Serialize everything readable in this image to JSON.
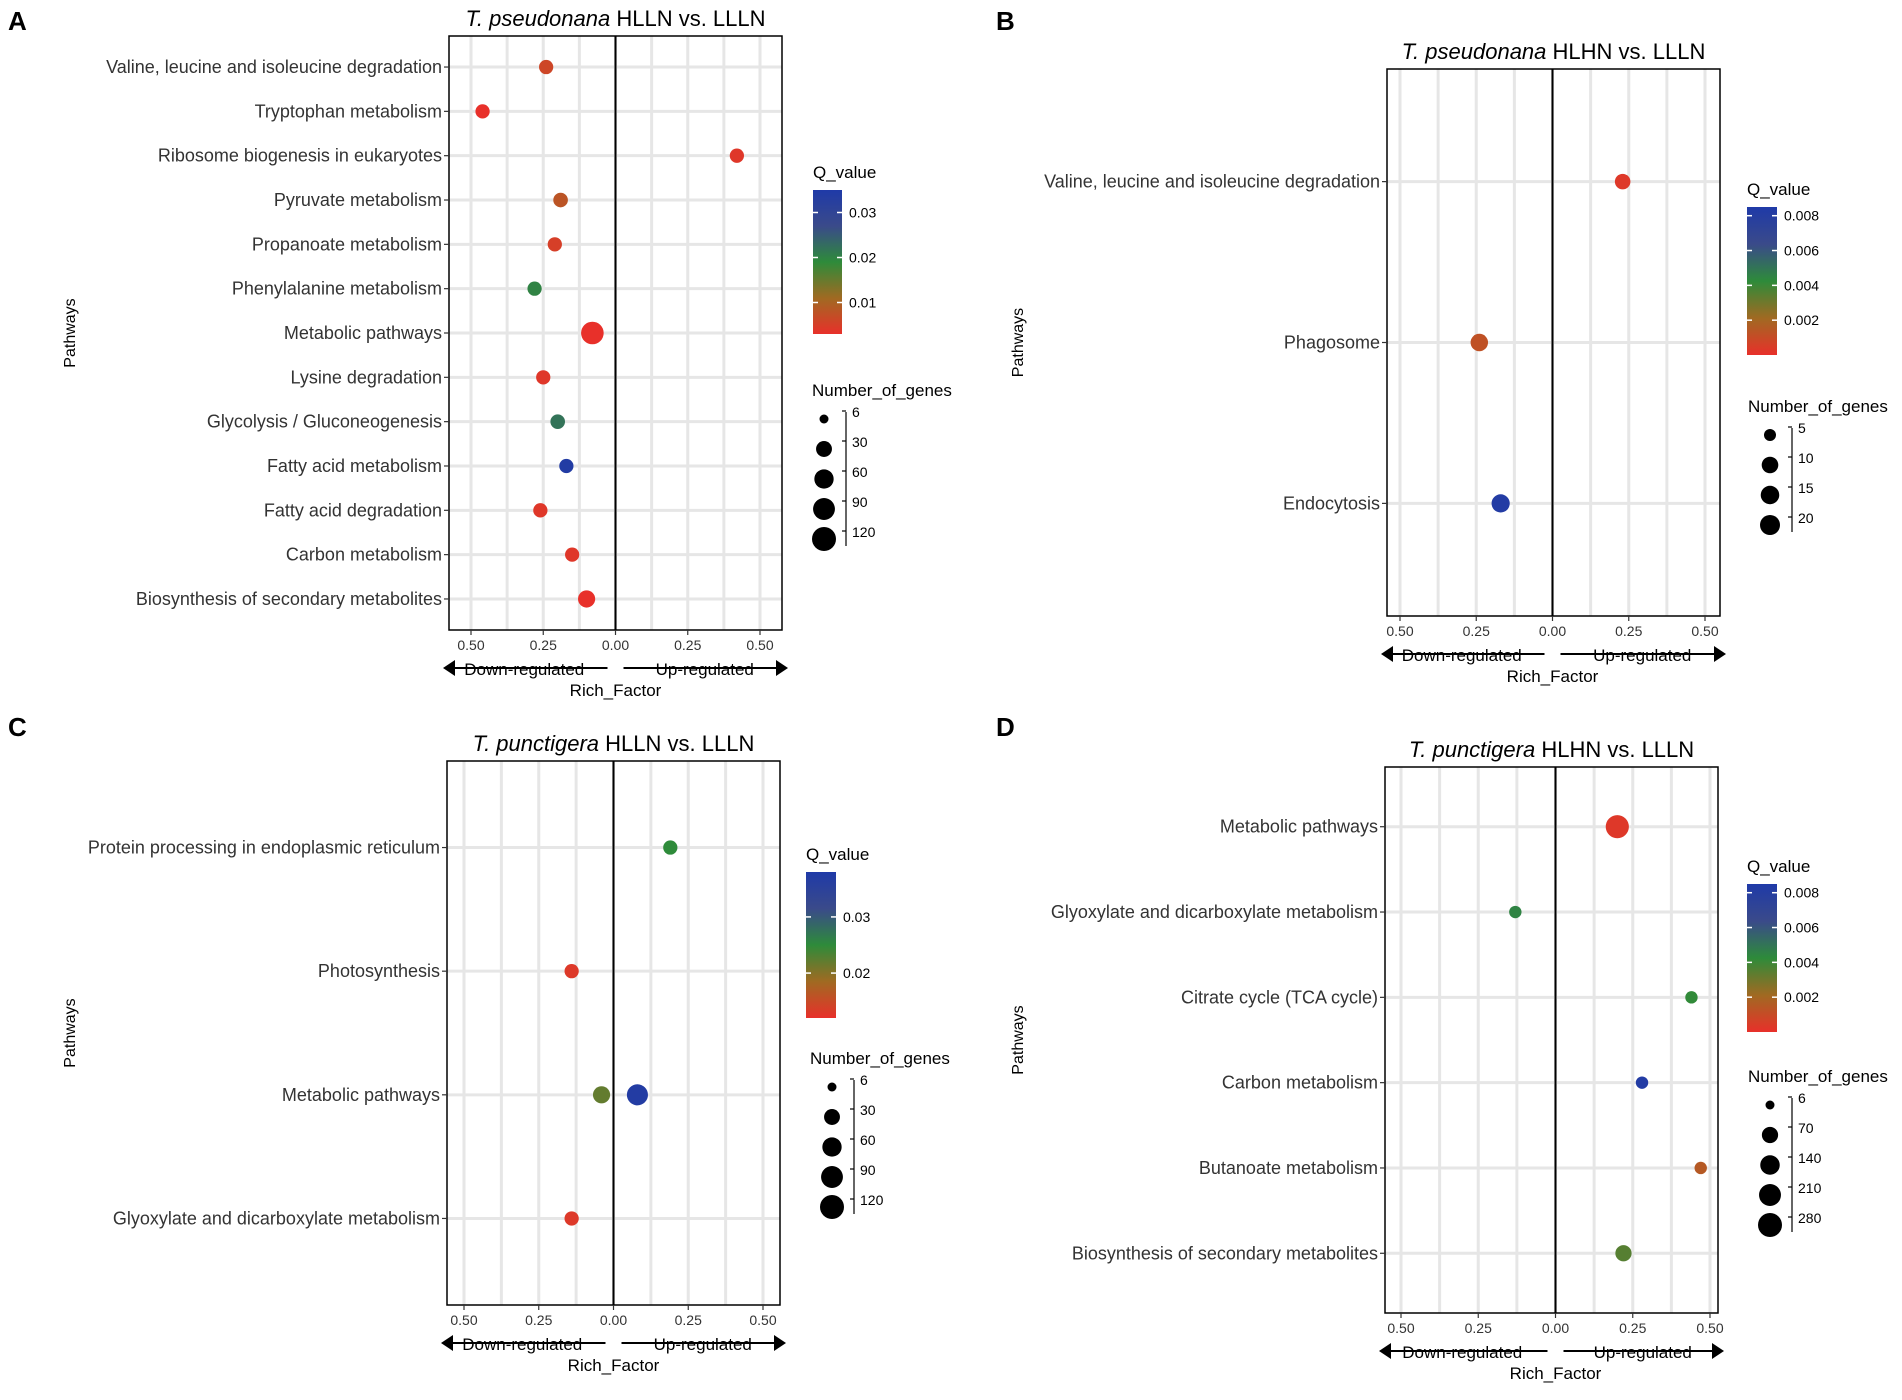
{
  "chart_data": [
    {
      "panel": "A",
      "type": "scatter",
      "title_italic": "T. pseudonana",
      "title_rest": " HLLN vs. LLLN",
      "ylabel": "Pathways",
      "xlabel": "Rich_Factor",
      "down_label": "Down-regulated",
      "up_label": "Up-regulated",
      "xlim": [
        -0.5,
        0.5
      ],
      "x_ticks": [
        -0.5,
        -0.25,
        0,
        0.25,
        0.5
      ],
      "x_tick_labels": [
        "0.50",
        "0.25",
        "0.00",
        "0.25",
        "0.50"
      ],
      "q_legend_title": "Q_value",
      "q_range": [
        0.003,
        0.035
      ],
      "q_ticks": [
        0.01,
        0.02,
        0.03
      ],
      "q_tick_labels": [
        "0.01",
        "0.02",
        "0.03"
      ],
      "size_legend_title": "Number_of_genes",
      "size_range": [
        6,
        120
      ],
      "size_ticks": [
        6,
        30,
        60,
        90,
        120
      ],
      "size_tick_labels": [
        "6",
        "30",
        "60",
        "90",
        "120"
      ],
      "categories": [
        "Valine, leucine and isoleucine degradation",
        "Tryptophan metabolism",
        "Ribosome biogenesis in eukaryotes",
        "Pyruvate metabolism",
        "Propanoate metabolism",
        "Phenylalanine metabolism",
        "Metabolic pathways",
        "Lysine degradation",
        "Glycolysis / Gluconeogenesis",
        "Fatty acid metabolism",
        "Fatty acid degradation",
        "Carbon metabolism",
        "Biosynthesis of secondary metabolites"
      ],
      "points": [
        {
          "pathway": "Valine, leucine and isoleucine degradation",
          "x": -0.24,
          "genes": 20,
          "q": 0.006
        },
        {
          "pathway": "Tryptophan metabolism",
          "x": -0.46,
          "genes": 20,
          "q": 0.003
        },
        {
          "pathway": "Ribosome biogenesis in eukaryotes",
          "x": 0.42,
          "genes": 20,
          "q": 0.004
        },
        {
          "pathway": "Pyruvate metabolism",
          "x": -0.19,
          "genes": 22,
          "q": 0.008
        },
        {
          "pathway": "Propanoate metabolism",
          "x": -0.21,
          "genes": 20,
          "q": 0.005
        },
        {
          "pathway": "Phenylalanine metabolism",
          "x": -0.28,
          "genes": 20,
          "q": 0.02
        },
        {
          "pathway": "Metabolic pathways",
          "x": -0.08,
          "genes": 100,
          "q": 0.003
        },
        {
          "pathway": "Lysine degradation",
          "x": -0.25,
          "genes": 20,
          "q": 0.004
        },
        {
          "pathway": "Glycolysis / Gluconeogenesis",
          "x": -0.2,
          "genes": 22,
          "q": 0.022
        },
        {
          "pathway": "Fatty acid metabolism",
          "x": -0.17,
          "genes": 20,
          "q": 0.034
        },
        {
          "pathway": "Fatty acid degradation",
          "x": -0.26,
          "genes": 20,
          "q": 0.004
        },
        {
          "pathway": "Carbon metabolism",
          "x": -0.15,
          "genes": 20,
          "q": 0.004
        },
        {
          "pathway": "Biosynthesis of secondary metabolites",
          "x": -0.1,
          "genes": 40,
          "q": 0.003
        }
      ]
    },
    {
      "panel": "B",
      "type": "scatter",
      "title_italic": "T. pseudonana",
      "title_rest": " HLHN vs. LLLN",
      "ylabel": "Pathways",
      "xlabel": "Rich_Factor",
      "down_label": "Down-regulated",
      "up_label": "Up-regulated",
      "xlim": [
        -0.5,
        0.5
      ],
      "x_ticks": [
        -0.5,
        -0.25,
        0,
        0.25,
        0.5
      ],
      "x_tick_labels": [
        "0.50",
        "0.25",
        "0.00",
        "0.25",
        "0.50"
      ],
      "q_legend_title": "Q_value",
      "q_range": [
        0.0,
        0.0085
      ],
      "q_ticks": [
        0.002,
        0.004,
        0.006,
        0.008
      ],
      "q_tick_labels": [
        "0.002",
        "0.004",
        "0.006",
        "0.008"
      ],
      "size_legend_title": "Number_of_genes",
      "size_range": [
        5,
        20
      ],
      "size_ticks": [
        5,
        10,
        15,
        20
      ],
      "size_tick_labels": [
        "5",
        "10",
        "15",
        "20"
      ],
      "categories": [
        "Valine, leucine and isoleucine degradation",
        "Phagosome",
        "Endocytosis"
      ],
      "points": [
        {
          "pathway": "Valine, leucine and isoleucine degradation",
          "x": 0.23,
          "genes": 8,
          "q": 0.0003
        },
        {
          "pathway": "Phagosome",
          "x": -0.24,
          "genes": 12,
          "q": 0.0012
        },
        {
          "pathway": "Endocytosis",
          "x": -0.17,
          "genes": 14,
          "q": 0.0082
        }
      ]
    },
    {
      "panel": "C",
      "type": "scatter",
      "title_italic": "T. punctigera",
      "title_rest": " HLLN vs. LLLN",
      "ylabel": "Pathways",
      "xlabel": "Rich_Factor",
      "down_label": "Down-regulated",
      "up_label": "Up-regulated",
      "xlim": [
        -0.5,
        0.5
      ],
      "x_ticks": [
        -0.5,
        -0.25,
        0,
        0.25,
        0.5
      ],
      "x_tick_labels": [
        "0.50",
        "0.25",
        "0.00",
        "0.25",
        "0.50"
      ],
      "q_legend_title": "Q_value",
      "q_range": [
        0.012,
        0.038
      ],
      "q_ticks": [
        0.02,
        0.03
      ],
      "q_tick_labels": [
        "0.02",
        "0.03"
      ],
      "size_legend_title": "Number_of_genes",
      "size_range": [
        6,
        120
      ],
      "size_ticks": [
        6,
        30,
        60,
        90,
        120
      ],
      "size_tick_labels": [
        "6",
        "30",
        "60",
        "90",
        "120"
      ],
      "categories": [
        "Protein processing in endoplasmic reticulum",
        "Photosynthesis",
        "Metabolic pathways",
        "Glyoxylate and dicarboxylate metabolism"
      ],
      "points": [
        {
          "pathway": "Protein processing in endoplasmic reticulum",
          "x": 0.19,
          "genes": 20,
          "q": 0.025
        },
        {
          "pathway": "Photosynthesis",
          "x": -0.14,
          "genes": 20,
          "q": 0.013
        },
        {
          "pathway": "Metabolic pathways",
          "x": -0.04,
          "genes": 40,
          "q": 0.022
        },
        {
          "pathway": "Metabolic pathways",
          "x": 0.08,
          "genes": 80,
          "q": 0.037
        },
        {
          "pathway": "Glyoxylate and dicarboxylate metabolism",
          "x": -0.14,
          "genes": 20,
          "q": 0.013
        }
      ]
    },
    {
      "panel": "D",
      "type": "scatter",
      "title_italic": "T. punctigera",
      "title_rest": " HLHN vs. LLLN",
      "ylabel": "Pathways",
      "xlabel": "Rich_Factor",
      "down_label": "Down-regulated",
      "up_label": "Up-regulated",
      "xlim": [
        -0.5,
        0.5
      ],
      "x_ticks": [
        -0.5,
        -0.25,
        0,
        0.25,
        0.5
      ],
      "x_tick_labels": [
        "0.50",
        "0.25",
        "0.00",
        "0.25",
        "0.50"
      ],
      "q_legend_title": "Q_value",
      "q_range": [
        0.0,
        0.0085
      ],
      "q_ticks": [
        0.002,
        0.004,
        0.006,
        0.008
      ],
      "q_tick_labels": [
        "0.002",
        "0.004",
        "0.006",
        "0.008"
      ],
      "size_legend_title": "Number_of_genes",
      "size_range": [
        6,
        280
      ],
      "size_ticks": [
        6,
        70,
        140,
        210,
        280
      ],
      "size_tick_labels": [
        "6",
        "70",
        "140",
        "210",
        "280"
      ],
      "categories": [
        "Metabolic pathways",
        "Glyoxylate and dicarboxylate metabolism",
        "Citrate cycle (TCA cycle)",
        "Carbon metabolism",
        "Butanoate metabolism",
        "Biosynthesis of secondary metabolites"
      ],
      "points": [
        {
          "pathway": "Metabolic pathways",
          "x": 0.2,
          "genes": 250,
          "q": 0.0003
        },
        {
          "pathway": "Glyoxylate and dicarboxylate metabolism",
          "x": -0.13,
          "genes": 20,
          "q": 0.0045
        },
        {
          "pathway": "Citrate cycle (TCA cycle)",
          "x": 0.44,
          "genes": 20,
          "q": 0.0042
        },
        {
          "pathway": "Carbon metabolism",
          "x": 0.28,
          "genes": 20,
          "q": 0.0082
        },
        {
          "pathway": "Butanoate metabolism",
          "x": 0.47,
          "genes": 20,
          "q": 0.0015
        },
        {
          "pathway": "Biosynthesis of secondary metabolites",
          "x": 0.22,
          "genes": 70,
          "q": 0.0035
        }
      ]
    }
  ]
}
